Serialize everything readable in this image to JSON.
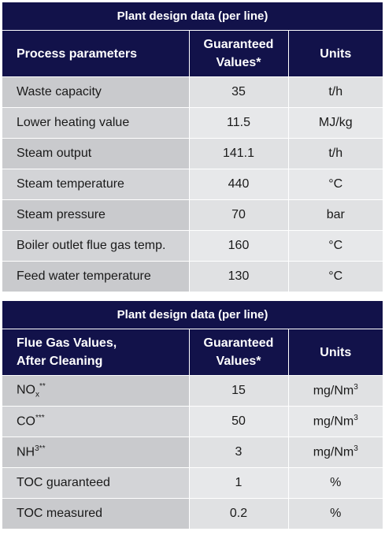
{
  "table1": {
    "title": "Plant design data (per line)",
    "headers": {
      "param": "Process parameters",
      "values_line1": "Guaranteed",
      "values_line2": "Values*",
      "units": "Units"
    },
    "rows": [
      {
        "param": "Waste capacity",
        "value": "35",
        "unit": "t/h"
      },
      {
        "param": "Lower heating value",
        "value": "11.5",
        "unit": "MJ/kg"
      },
      {
        "param": "Steam output",
        "value": "141.1",
        "unit": "t/h"
      },
      {
        "param": "Steam temperature",
        "value": "440",
        "unit": "°C"
      },
      {
        "param": "Steam pressure",
        "value": "70",
        "unit": "bar"
      },
      {
        "param": "Boiler outlet flue gas temp.",
        "value": "160",
        "unit": "°C"
      },
      {
        "param": "Feed water temperature",
        "value": "130",
        "unit": "°C"
      }
    ]
  },
  "table2": {
    "title": "Plant design data (per line)",
    "headers": {
      "param_line1": "Flue Gas Values,",
      "param_line2": "After Cleaning",
      "values_line1": "Guaranteed",
      "values_line2": "Values*",
      "units": "Units"
    },
    "rows": [
      {
        "param_base": "NO",
        "param_sub": "x",
        "param_sup": "**",
        "value": "15",
        "unit_base": "mg/Nm",
        "unit_sup": "3"
      },
      {
        "param_base": "CO",
        "param_sup": "***",
        "value": "50",
        "unit_base": "mg/Nm",
        "unit_sup": "3"
      },
      {
        "param_base": "NH",
        "param_sup": "3**",
        "value": "3",
        "unit_base": "mg/Nm",
        "unit_sup": "3"
      },
      {
        "param_base": "TOC guaranteed",
        "value": "1",
        "unit_base": "%"
      },
      {
        "param_base": "TOC measured",
        "value": "0.2",
        "unit_base": "%"
      }
    ]
  }
}
